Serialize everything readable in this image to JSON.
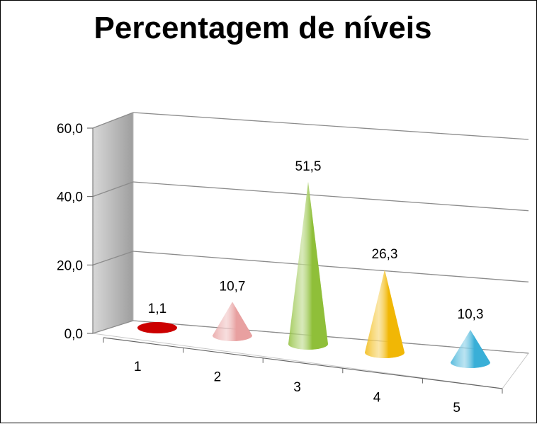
{
  "chart_data": {
    "type": "bar",
    "style": "3d-cone",
    "title": "Percentagem de níveis",
    "categories": [
      "1",
      "2",
      "3",
      "4",
      "5"
    ],
    "values": [
      1.1,
      10.7,
      51.5,
      26.3,
      10.3
    ],
    "data_labels": [
      "1,1",
      "10,7",
      "51,5",
      "26,3",
      "10,3"
    ],
    "ylim": [
      0,
      60
    ],
    "y_ticks": [
      0,
      20,
      40,
      60
    ],
    "y_tick_labels": [
      "0,0",
      "20,0",
      "40,0",
      "60,0"
    ],
    "xlabel": "",
    "ylabel": "",
    "grid": true,
    "legend": "none",
    "colors": [
      "#cc0000",
      "#e8a0a0",
      "#8fbf3a",
      "#f2b705",
      "#3ab0d8"
    ],
    "wall_color": "#9e9e9e"
  }
}
